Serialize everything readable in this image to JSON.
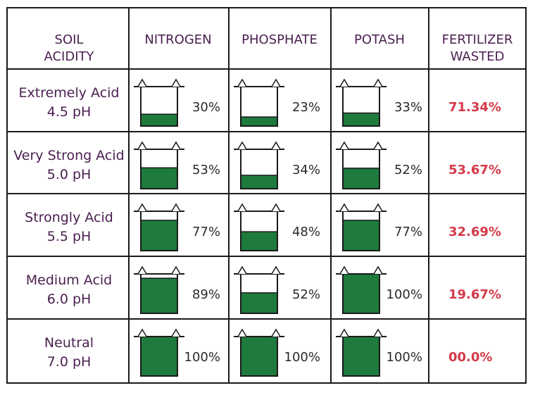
{
  "headers": {
    "soil_acidity": [
      "SOIL",
      "ACIDITY"
    ],
    "nitrogen": "NITROGEN",
    "phosphate": "PHOSPHATE",
    "potash": "POTASH",
    "fertilizer_wasted": [
      "FERTILIZER",
      "WASTED"
    ]
  },
  "chart_data": {
    "type": "table",
    "columns": [
      "NITROGEN",
      "PHOSPHATE",
      "POTASH"
    ],
    "rows": [
      {
        "label": "Extremely Acid",
        "ph": "4.5 pH",
        "values": [
          30,
          23,
          33
        ],
        "value_labels": [
          "30%",
          "23%",
          "33%"
        ],
        "wasted": "71.34%"
      },
      {
        "label": "Very Strong Acid",
        "ph": "5.0 pH",
        "values": [
          53,
          34,
          52
        ],
        "value_labels": [
          "53%",
          "34%",
          "52%"
        ],
        "wasted": "53.67%"
      },
      {
        "label": "Strongly Acid",
        "ph": "5.5 pH",
        "values": [
          77,
          48,
          77
        ],
        "value_labels": [
          "77%",
          "48%",
          "77%"
        ],
        "wasted": "32.69%"
      },
      {
        "label": "Medium Acid",
        "ph": "6.0 pH",
        "values": [
          89,
          52,
          100
        ],
        "value_labels": [
          "89%",
          "52%",
          "100%"
        ],
        "wasted": "19.67%"
      },
      {
        "label": "Neutral",
        "ph": "7.0 pH",
        "values": [
          100,
          100,
          100
        ],
        "value_labels": [
          "100%",
          "100%",
          "100%"
        ],
        "wasted": "00.0%"
      }
    ]
  },
  "colors": {
    "fill": "#1f7a3d",
    "header_text": "#4a1f4f",
    "wasted_text": "#d43a4a",
    "grid": "#1a1a1a"
  }
}
